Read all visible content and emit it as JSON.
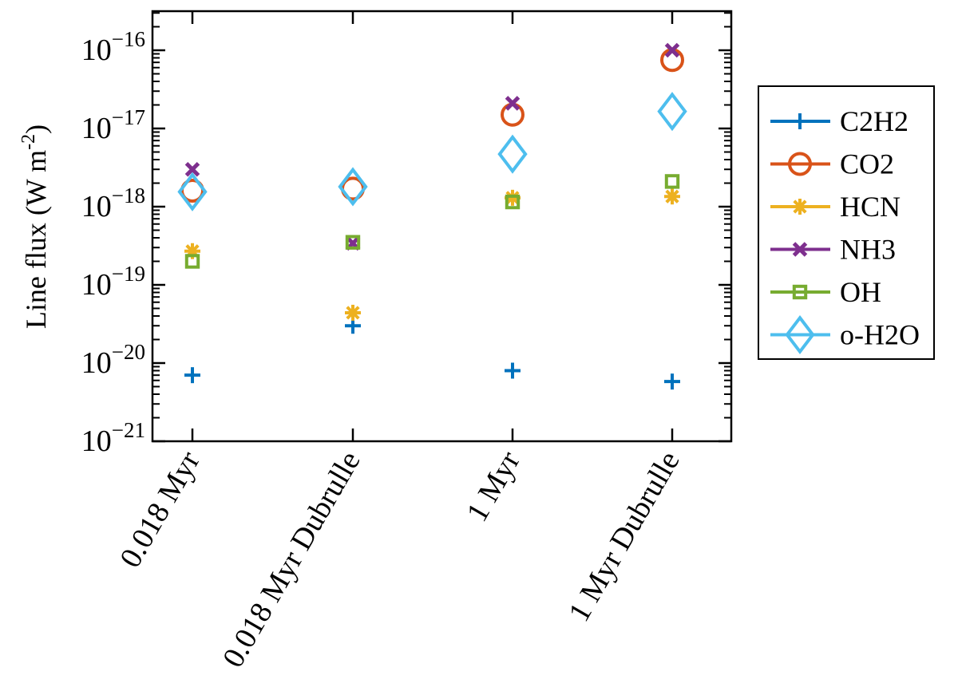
{
  "chart_data": {
    "type": "scatter",
    "title": "",
    "xlabel": "",
    "ylabel": "Line flux (W m",
    "ylabel_sup": "-2",
    "ylabel_close": ")",
    "yscale": "log",
    "ylim_exp": [
      -21,
      -15.5
    ],
    "ytick_base": "10",
    "yticks": [
      "−21",
      "−20",
      "−19",
      "−18",
      "−17",
      "−16"
    ],
    "categories": [
      "0.018 Myr",
      "0.018 Myr Dubrulle",
      "1 Myr",
      "1 Myr Dubrulle"
    ],
    "legend_position": "outside-right",
    "series": [
      {
        "name": "C2H2",
        "marker": "plus",
        "color": "#0072BD",
        "values": [
          7e-21,
          3e-20,
          8e-21,
          5.8e-21
        ]
      },
      {
        "name": "CO2",
        "marker": "circle",
        "color": "#D95319",
        "values": [
          1.6e-18,
          1.7e-18,
          1.5e-17,
          7.5e-17
        ]
      },
      {
        "name": "HCN",
        "marker": "asterisk",
        "color": "#EDB120",
        "values": [
          2.7e-19,
          4.4e-20,
          1.3e-18,
          1.35e-18
        ]
      },
      {
        "name": "NH3",
        "marker": "x",
        "color": "#7E2F8E",
        "values": [
          3e-18,
          3.4e-19,
          2.1e-17,
          1e-16
        ]
      },
      {
        "name": "OH",
        "marker": "square",
        "color": "#77AC30",
        "values": [
          2e-19,
          3.5e-19,
          1.15e-18,
          2.1e-18
        ]
      },
      {
        "name": "o-H2O",
        "marker": "diamond",
        "color": "#4DBEEE",
        "values": [
          1.55e-18,
          1.8e-18,
          4.7e-18,
          1.65e-17
        ]
      }
    ]
  }
}
